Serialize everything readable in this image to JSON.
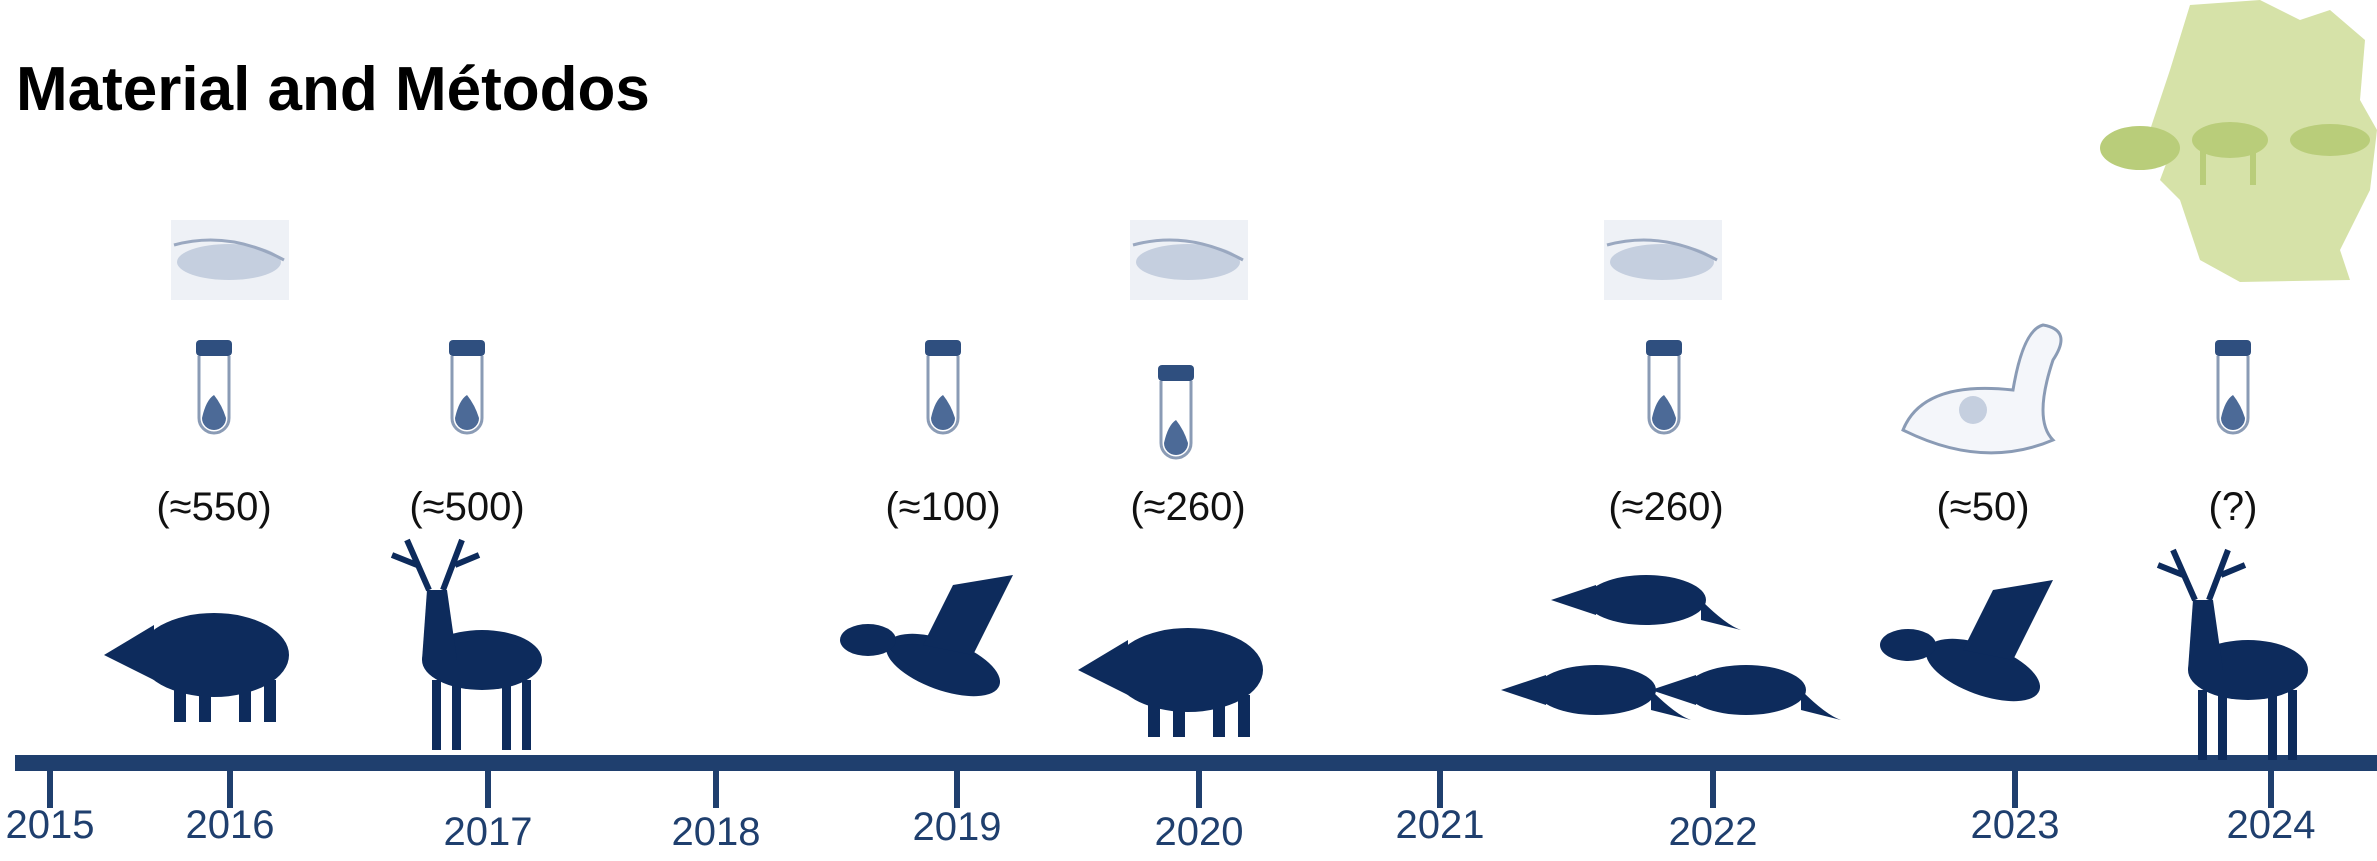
{
  "title": "Material and Métodos",
  "years": [
    "2015",
    "2016",
    "2017",
    "2018",
    "2019",
    "2020",
    "2021",
    "2022",
    "2023",
    "2024"
  ],
  "samples": [
    {
      "count": "(≈550)"
    },
    {
      "count": "(≈500)"
    },
    {
      "count": "(≈100)"
    },
    {
      "count": "(≈260)"
    },
    {
      "count": "(≈260)"
    },
    {
      "count": "(≈50)"
    },
    {
      "count": "(?)"
    }
  ]
}
